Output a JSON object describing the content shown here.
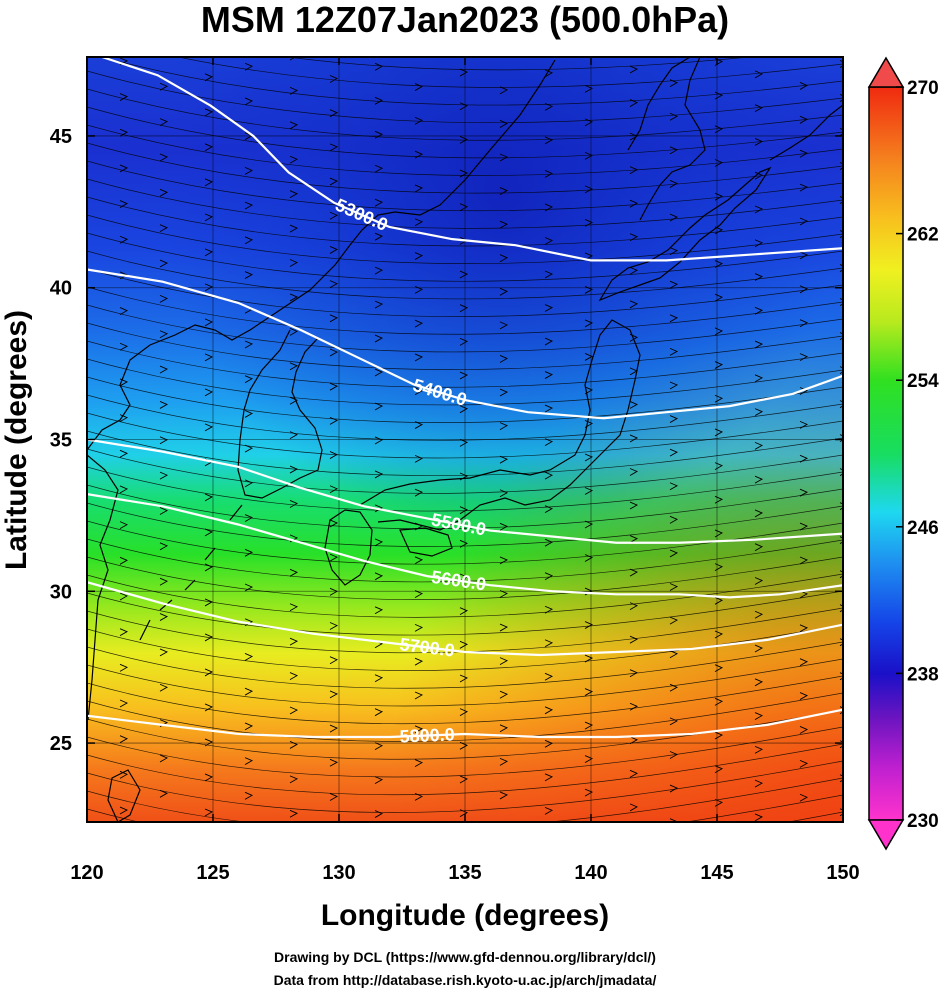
{
  "title": "MSM 12Z07Jan2023 (500.0hPa)",
  "chart_data": {
    "type": "heatmap",
    "title": "MSM 12Z07Jan2023 (500.0hPa)",
    "xlabel": "Longitude (degrees)",
    "ylabel": "Latitude  (degrees)",
    "xlim": [
      120,
      150
    ],
    "ylim": [
      22.4,
      47.6
    ],
    "xticks": [
      120,
      125,
      130,
      135,
      140,
      145,
      150
    ],
    "yticks": [
      25,
      30,
      35,
      40,
      45
    ],
    "grid": true,
    "fill_variable_range": [
      230,
      270
    ],
    "colorbar": {
      "min": 230,
      "max": 270,
      "ticks": [
        230,
        238,
        246,
        254,
        262,
        270
      ],
      "colors": [
        "#ff33cc",
        "#aa11cc",
        "#5511bb",
        "#1a10c8",
        "#1545e8",
        "#1e9ff0",
        "#1ed8f0",
        "#18dd60",
        "#30e020",
        "#a8e81e",
        "#f0f020",
        "#f8c81e",
        "#f58c1e",
        "#f55a1a",
        "#e83010"
      ]
    },
    "contours": [
      {
        "level": 5300.0,
        "label": "5300.0",
        "points": [
          [
            120.6,
            47.6
          ],
          [
            122.8,
            47.0
          ],
          [
            124.9,
            46.0
          ],
          [
            126.6,
            45.0
          ],
          [
            128.0,
            43.8
          ],
          [
            129.8,
            42.8
          ],
          [
            132.0,
            42.0
          ],
          [
            134.5,
            41.6
          ],
          [
            137.0,
            41.4
          ],
          [
            140.0,
            40.9
          ],
          [
            143.0,
            40.9
          ],
          [
            146.5,
            41.1
          ],
          [
            150.0,
            41.3
          ]
        ]
      },
      {
        "level": 5400.0,
        "label": "5400.0",
        "points": [
          [
            120.0,
            40.6
          ],
          [
            123.0,
            40.2
          ],
          [
            126.0,
            39.5
          ],
          [
            128.5,
            38.6
          ],
          [
            131.0,
            37.6
          ],
          [
            133.0,
            36.8
          ],
          [
            135.0,
            36.3
          ],
          [
            137.5,
            35.9
          ],
          [
            140.5,
            35.7
          ],
          [
            143.0,
            35.9
          ],
          [
            145.5,
            36.1
          ],
          [
            148.0,
            36.5
          ],
          [
            150.0,
            37.1
          ]
        ]
      },
      {
        "level": 5500.0,
        "label": "5500.0",
        "points": [
          [
            120.0,
            35.0
          ],
          [
            123.0,
            34.6
          ],
          [
            126.0,
            34.1
          ],
          [
            128.5,
            33.4
          ],
          [
            131.0,
            32.8
          ],
          [
            133.5,
            32.4
          ],
          [
            136.0,
            32.0
          ],
          [
            138.5,
            31.8
          ],
          [
            141.0,
            31.6
          ],
          [
            143.5,
            31.6
          ],
          [
            146.5,
            31.7
          ],
          [
            150.0,
            31.9
          ]
        ]
      },
      {
        "level": 5600.0,
        "label": "5600.0",
        "points": [
          [
            120.0,
            33.2
          ],
          [
            123.0,
            32.8
          ],
          [
            126.0,
            32.2
          ],
          [
            128.5,
            31.6
          ],
          [
            131.0,
            31.0
          ],
          [
            133.5,
            30.5
          ],
          [
            136.0,
            30.2
          ],
          [
            138.5,
            30.0
          ],
          [
            141.0,
            29.9
          ],
          [
            143.5,
            29.9
          ],
          [
            145.5,
            29.8
          ],
          [
            147.5,
            29.9
          ],
          [
            150.0,
            30.2
          ]
        ]
      },
      {
        "level": 5700.0,
        "label": "5700.0",
        "points": [
          [
            120.0,
            30.3
          ],
          [
            123.0,
            29.6
          ],
          [
            126.0,
            29.0
          ],
          [
            129.0,
            28.6
          ],
          [
            132.0,
            28.3
          ],
          [
            135.0,
            28.0
          ],
          [
            138.0,
            27.9
          ],
          [
            141.0,
            28.0
          ],
          [
            144.0,
            28.1
          ],
          [
            147.0,
            28.4
          ],
          [
            150.0,
            28.9
          ]
        ]
      },
      {
        "level": 5800.0,
        "label": "5800.0",
        "points": [
          [
            120.0,
            25.9
          ],
          [
            123.0,
            25.6
          ],
          [
            126.0,
            25.3
          ],
          [
            129.0,
            25.2
          ],
          [
            132.0,
            25.2
          ],
          [
            135.0,
            25.3
          ],
          [
            138.0,
            25.2
          ],
          [
            141.0,
            25.2
          ],
          [
            144.0,
            25.3
          ],
          [
            147.0,
            25.6
          ],
          [
            150.0,
            26.1
          ]
        ]
      }
    ]
  },
  "footer": {
    "line1": "Drawing by DCL (https://www.gfd-dennou.org/library/dcl/)",
    "line2": "Data from http://database.rish.kyoto-u.ac.jp/arch/jmadata/"
  }
}
